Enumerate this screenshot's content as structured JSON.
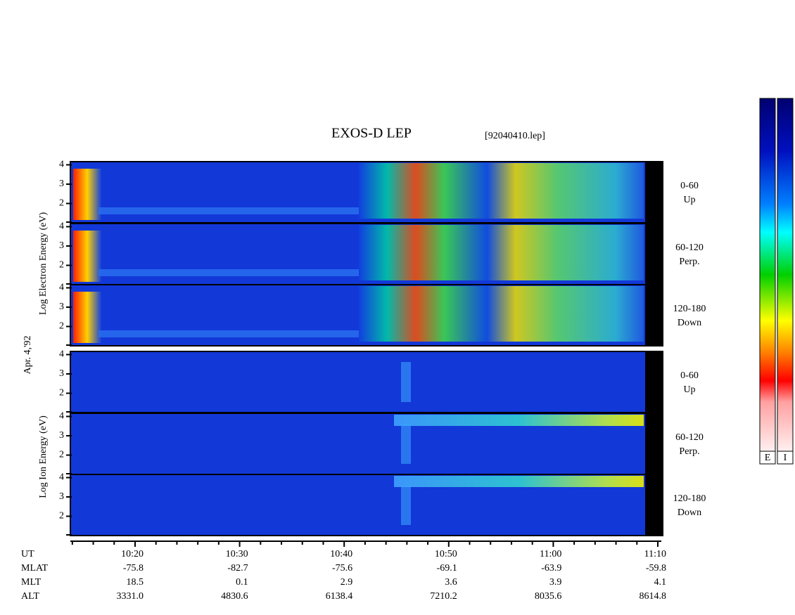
{
  "title": "EXOS-D LEP",
  "file": "[92040410.lep]",
  "date": "Apr. 4,'92",
  "electron_axis_label": "Log Electron Energy (eV)",
  "ion_axis_label": "Log Ion Energy (eV)",
  "energy_ticks": [
    "2",
    "3",
    "4"
  ],
  "panels": [
    {
      "species": "electron",
      "pitch": "0-60",
      "direction": "Up"
    },
    {
      "species": "electron",
      "pitch": "60-120",
      "direction": "Perp."
    },
    {
      "species": "electron",
      "pitch": "120-180",
      "direction": "Down"
    },
    {
      "species": "ion",
      "pitch": "0-60",
      "direction": "Up"
    },
    {
      "species": "ion",
      "pitch": "60-120",
      "direction": "Perp."
    },
    {
      "species": "ion",
      "pitch": "120-180",
      "direction": "Down"
    }
  ],
  "time_ticks": [
    "10:20",
    "10:30",
    "10:40",
    "10:50",
    "11:00",
    "11:10"
  ],
  "ephemeris": [
    {
      "label": "UT"
    },
    {
      "label": "MLAT",
      "values": [
        "-75.8",
        "-82.7",
        "-75.6",
        "-69.1",
        "-63.9",
        "-59.8"
      ]
    },
    {
      "label": "MLT",
      "values": [
        "18.5",
        "0.1",
        "2.9",
        "3.6",
        "3.9",
        "4.1"
      ]
    },
    {
      "label": "ALT",
      "values": [
        "3331.0",
        "4830.6",
        "6138.4",
        "7210.2",
        "8035.6",
        "8614.8"
      ]
    }
  ],
  "colorbar_labels": [
    "E",
    "I"
  ]
}
